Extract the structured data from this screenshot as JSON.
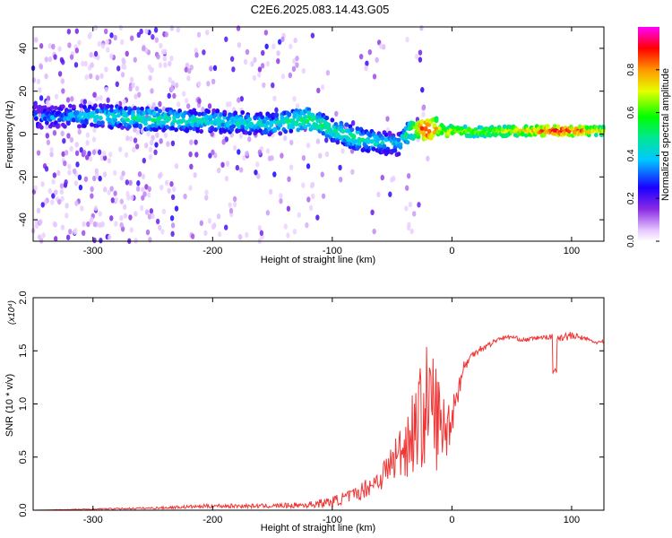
{
  "title": "C2E6.2025.083.14.43.G05",
  "chart_data": [
    {
      "type": "heatmap",
      "xlabel": "Height of straight line (km)",
      "ylabel": "Frequency (Hz)",
      "xlim": [
        -350,
        127
      ],
      "ylim": [
        -50,
        50
      ],
      "xticks": [
        -300,
        -200,
        -100,
        0,
        100
      ],
      "yticks": [
        -40,
        -20,
        0,
        20,
        40
      ],
      "colorbar": {
        "label": "Normalized spectral amplitude",
        "range": [
          0,
          1
        ],
        "ticks": [
          "0.0",
          "0.2",
          "0.4",
          "0.6",
          "0.8"
        ]
      },
      "dominant_ridge": {
        "x": [
          -330,
          -300,
          -250,
          -200,
          -150,
          -120,
          -100,
          -80,
          -60,
          -45,
          -35,
          -25,
          -20,
          -10,
          -5,
          0,
          20,
          60,
          90,
          127
        ],
        "frequency": [
          8,
          8.5,
          7,
          6,
          4.5,
          7,
          2,
          -2,
          -4,
          -5,
          2,
          3,
          2,
          3,
          0,
          2,
          1,
          1.5,
          1.5,
          1.5
        ],
        "amplitude": [
          0.35,
          0.45,
          0.5,
          0.45,
          0.45,
          0.55,
          0.5,
          0.5,
          0.45,
          0.4,
          0.55,
          0.85,
          0.95,
          0.7,
          0.8,
          0.7,
          0.65,
          0.75,
          0.95,
          0.7
        ]
      }
    },
    {
      "type": "line",
      "xlabel": "Height of straight line (km)",
      "ylabel": "SNR (10 * v/v)",
      "scale_label": "(x10⁴)",
      "xlim": [
        -350,
        127
      ],
      "ylim": [
        0,
        2.0
      ],
      "xticks": [
        -300,
        -200,
        -100,
        0,
        100
      ],
      "yticks": [
        "0.0",
        "0.5",
        "1.0",
        "1.5",
        "2.0"
      ],
      "color": "#f03535",
      "series": [
        {
          "x": [
            -350,
            -300,
            -250,
            -200,
            -150,
            -120,
            -100,
            -80,
            -60,
            -50,
            -40,
            -30,
            -20,
            -15,
            -10,
            -5,
            0,
            10,
            20,
            30,
            40,
            50,
            60,
            70,
            80,
            90,
            100,
            110,
            120,
            127
          ],
          "values": [
            0.0,
            0.01,
            0.02,
            0.04,
            0.04,
            0.05,
            0.08,
            0.15,
            0.3,
            0.45,
            0.6,
            0.8,
            1.0,
            0.95,
            0.8,
            0.75,
            0.9,
            1.35,
            1.5,
            1.55,
            1.62,
            1.63,
            1.6,
            1.62,
            1.63,
            1.63,
            1.64,
            1.62,
            1.58,
            1.58
          ],
          "noise": [
            0.0,
            0.005,
            0.01,
            0.02,
            0.02,
            0.03,
            0.05,
            0.07,
            0.12,
            0.2,
            0.3,
            0.45,
            0.6,
            0.6,
            0.4,
            0.3,
            0.2,
            0.06,
            0.04,
            0.03,
            0.02,
            0.02,
            0.02,
            0.02,
            0.02,
            0.04,
            0.04,
            0.02,
            0.02,
            0.02
          ]
        }
      ]
    }
  ]
}
